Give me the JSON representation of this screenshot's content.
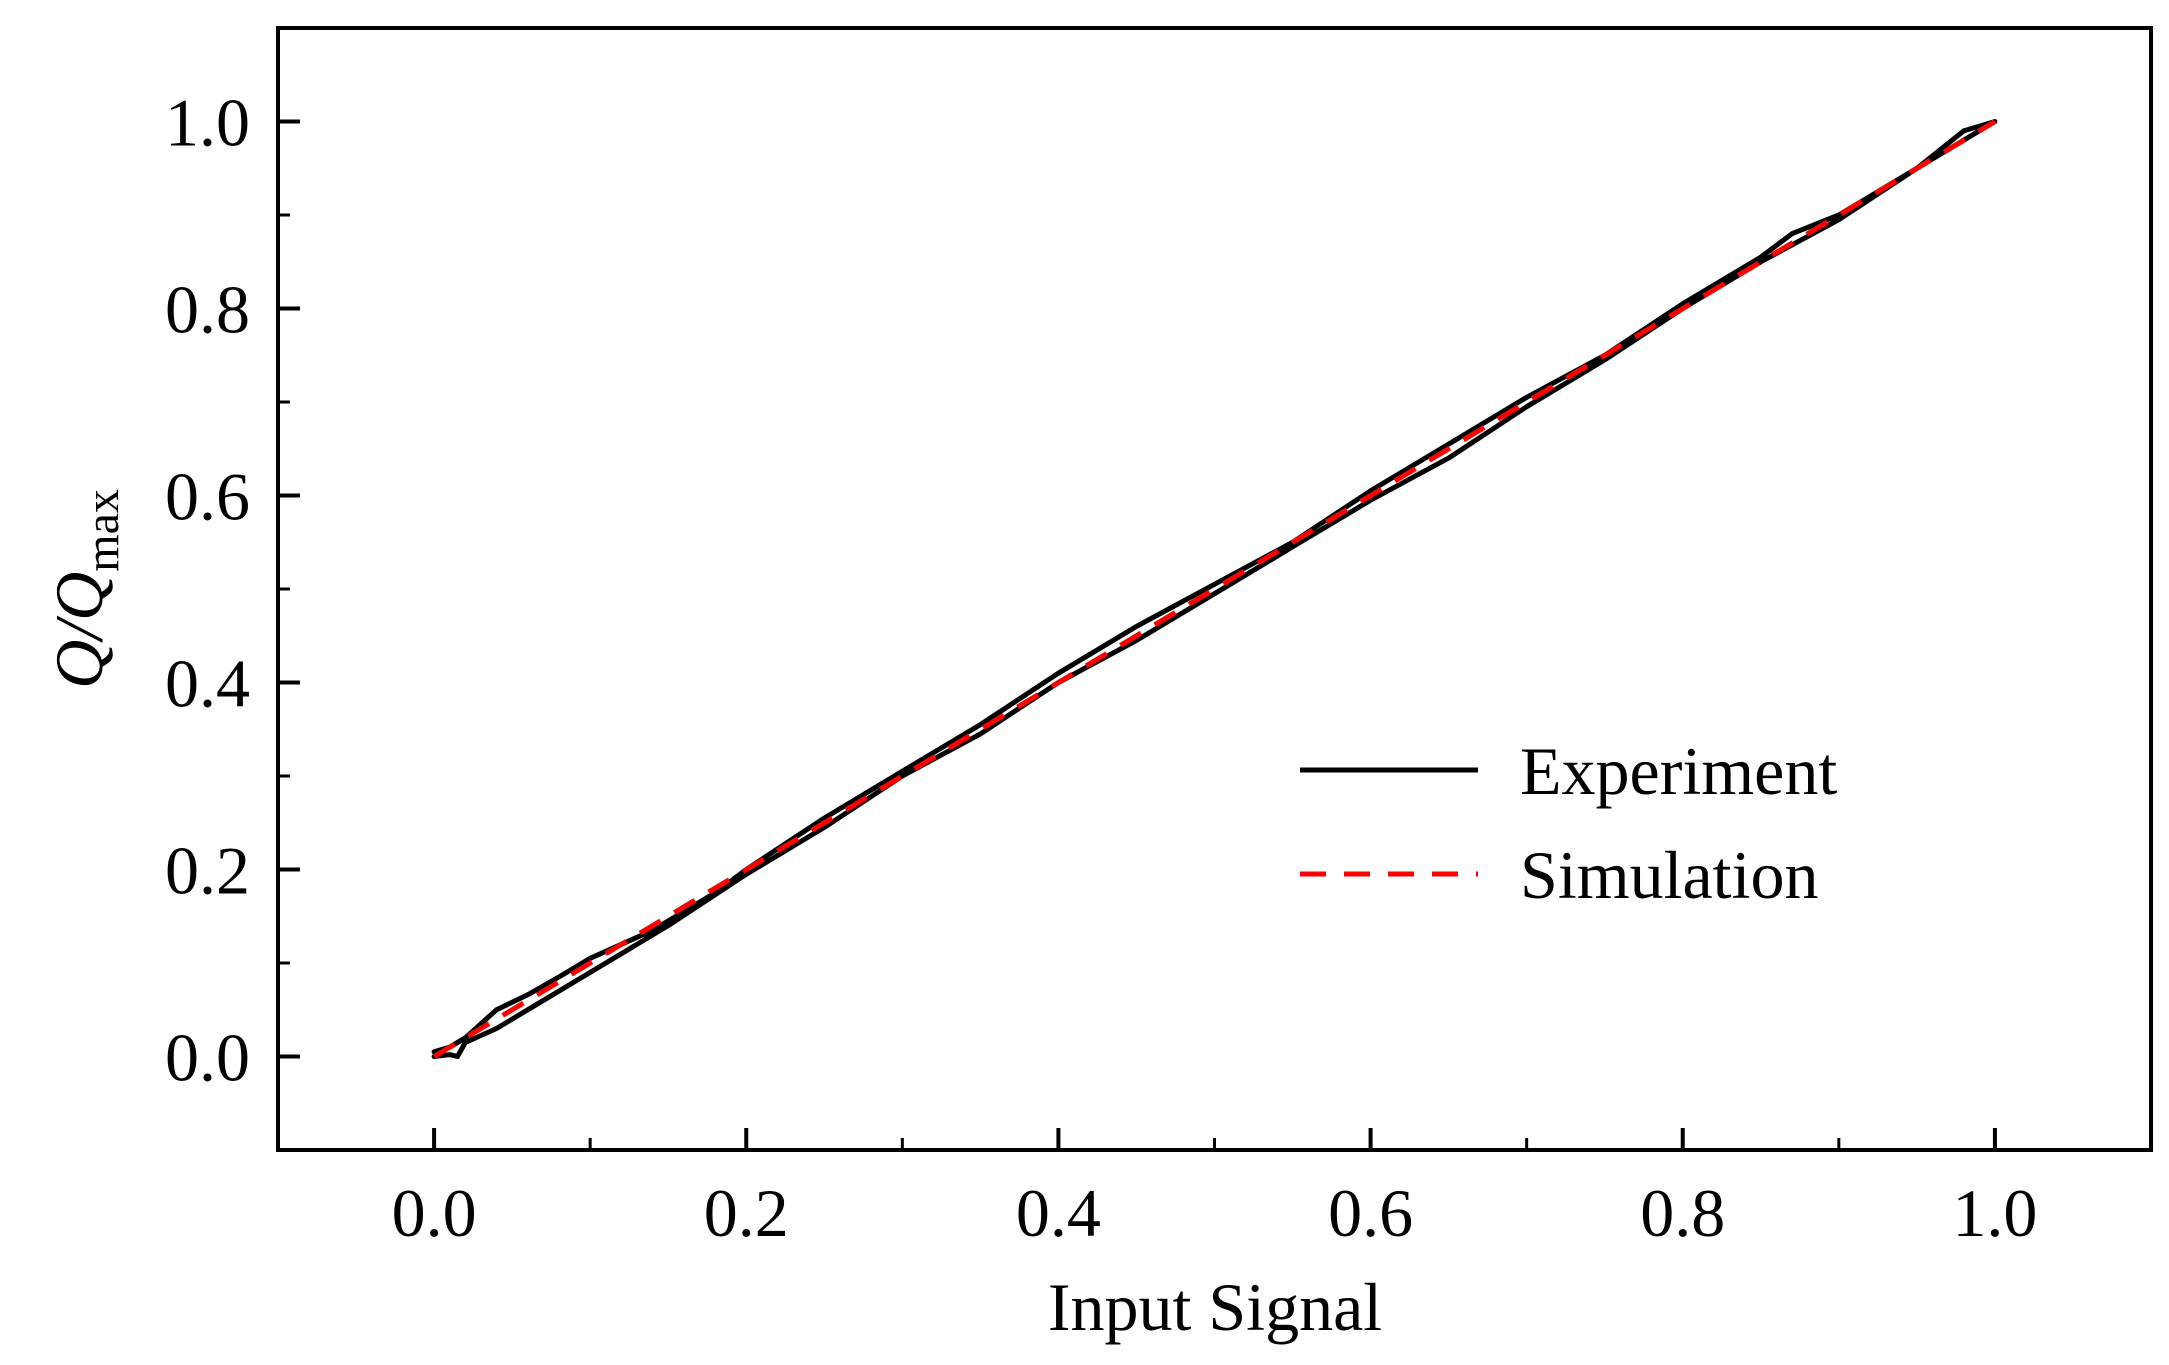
{
  "chart_data": {
    "type": "line",
    "title": "",
    "xlabel": "Input Signal",
    "ylabel": {
      "main": "Q/Q",
      "subscript": "max"
    },
    "xlim": [
      -0.1,
      1.1
    ],
    "ylim": [
      -0.1,
      1.1
    ],
    "xticks": [
      0.0,
      0.2,
      0.4,
      0.6,
      0.8,
      1.0
    ],
    "yticks": [
      0.0,
      0.2,
      0.4,
      0.6,
      0.8,
      1.0
    ],
    "xtick_labels": [
      "0.0",
      "0.2",
      "0.4",
      "0.6",
      "0.8",
      "1.0"
    ],
    "ytick_labels": [
      "0.0",
      "0.2",
      "0.4",
      "0.6",
      "0.8",
      "1.0"
    ],
    "grid": false,
    "legend_position": "center-right",
    "series": [
      {
        "name": "Experiment",
        "color": "#000000",
        "style": "solid",
        "x": [
          0.0,
          0.01,
          0.02,
          0.04,
          0.06,
          0.08,
          0.1,
          0.12,
          0.14,
          0.16,
          0.18,
          0.2,
          0.25,
          0.3,
          0.35,
          0.4,
          0.45,
          0.5,
          0.55,
          0.6,
          0.65,
          0.7,
          0.75,
          0.8,
          0.85,
          0.87,
          0.9,
          0.95,
          1.0,
          0.98,
          0.95,
          0.9,
          0.85,
          0.8,
          0.75,
          0.7,
          0.65,
          0.6,
          0.55,
          0.5,
          0.45,
          0.4,
          0.35,
          0.3,
          0.25,
          0.2,
          0.15,
          0.1,
          0.06,
          0.04,
          0.02,
          0.015,
          0.01,
          0.0
        ],
        "y": [
          0.005,
          0.01,
          0.02,
          0.05,
          0.066,
          0.085,
          0.105,
          0.12,
          0.135,
          0.155,
          0.175,
          0.2,
          0.255,
          0.305,
          0.355,
          0.41,
          0.46,
          0.505,
          0.55,
          0.605,
          0.655,
          0.705,
          0.75,
          0.805,
          0.855,
          0.88,
          0.9,
          0.95,
          1.0,
          0.99,
          0.95,
          0.895,
          0.85,
          0.8,
          0.745,
          0.695,
          0.64,
          0.595,
          0.545,
          0.495,
          0.445,
          0.4,
          0.345,
          0.3,
          0.245,
          0.195,
          0.14,
          0.09,
          0.05,
          0.03,
          0.015,
          0.0,
          0.002,
          0.0
        ]
      },
      {
        "name": "Simulation",
        "color": "#ff0000",
        "style": "dashed",
        "x": [
          0.0,
          0.2,
          0.4,
          0.6,
          0.8,
          1.0
        ],
        "y": [
          0.0,
          0.2,
          0.4,
          0.6,
          0.8,
          1.0
        ]
      }
    ]
  }
}
